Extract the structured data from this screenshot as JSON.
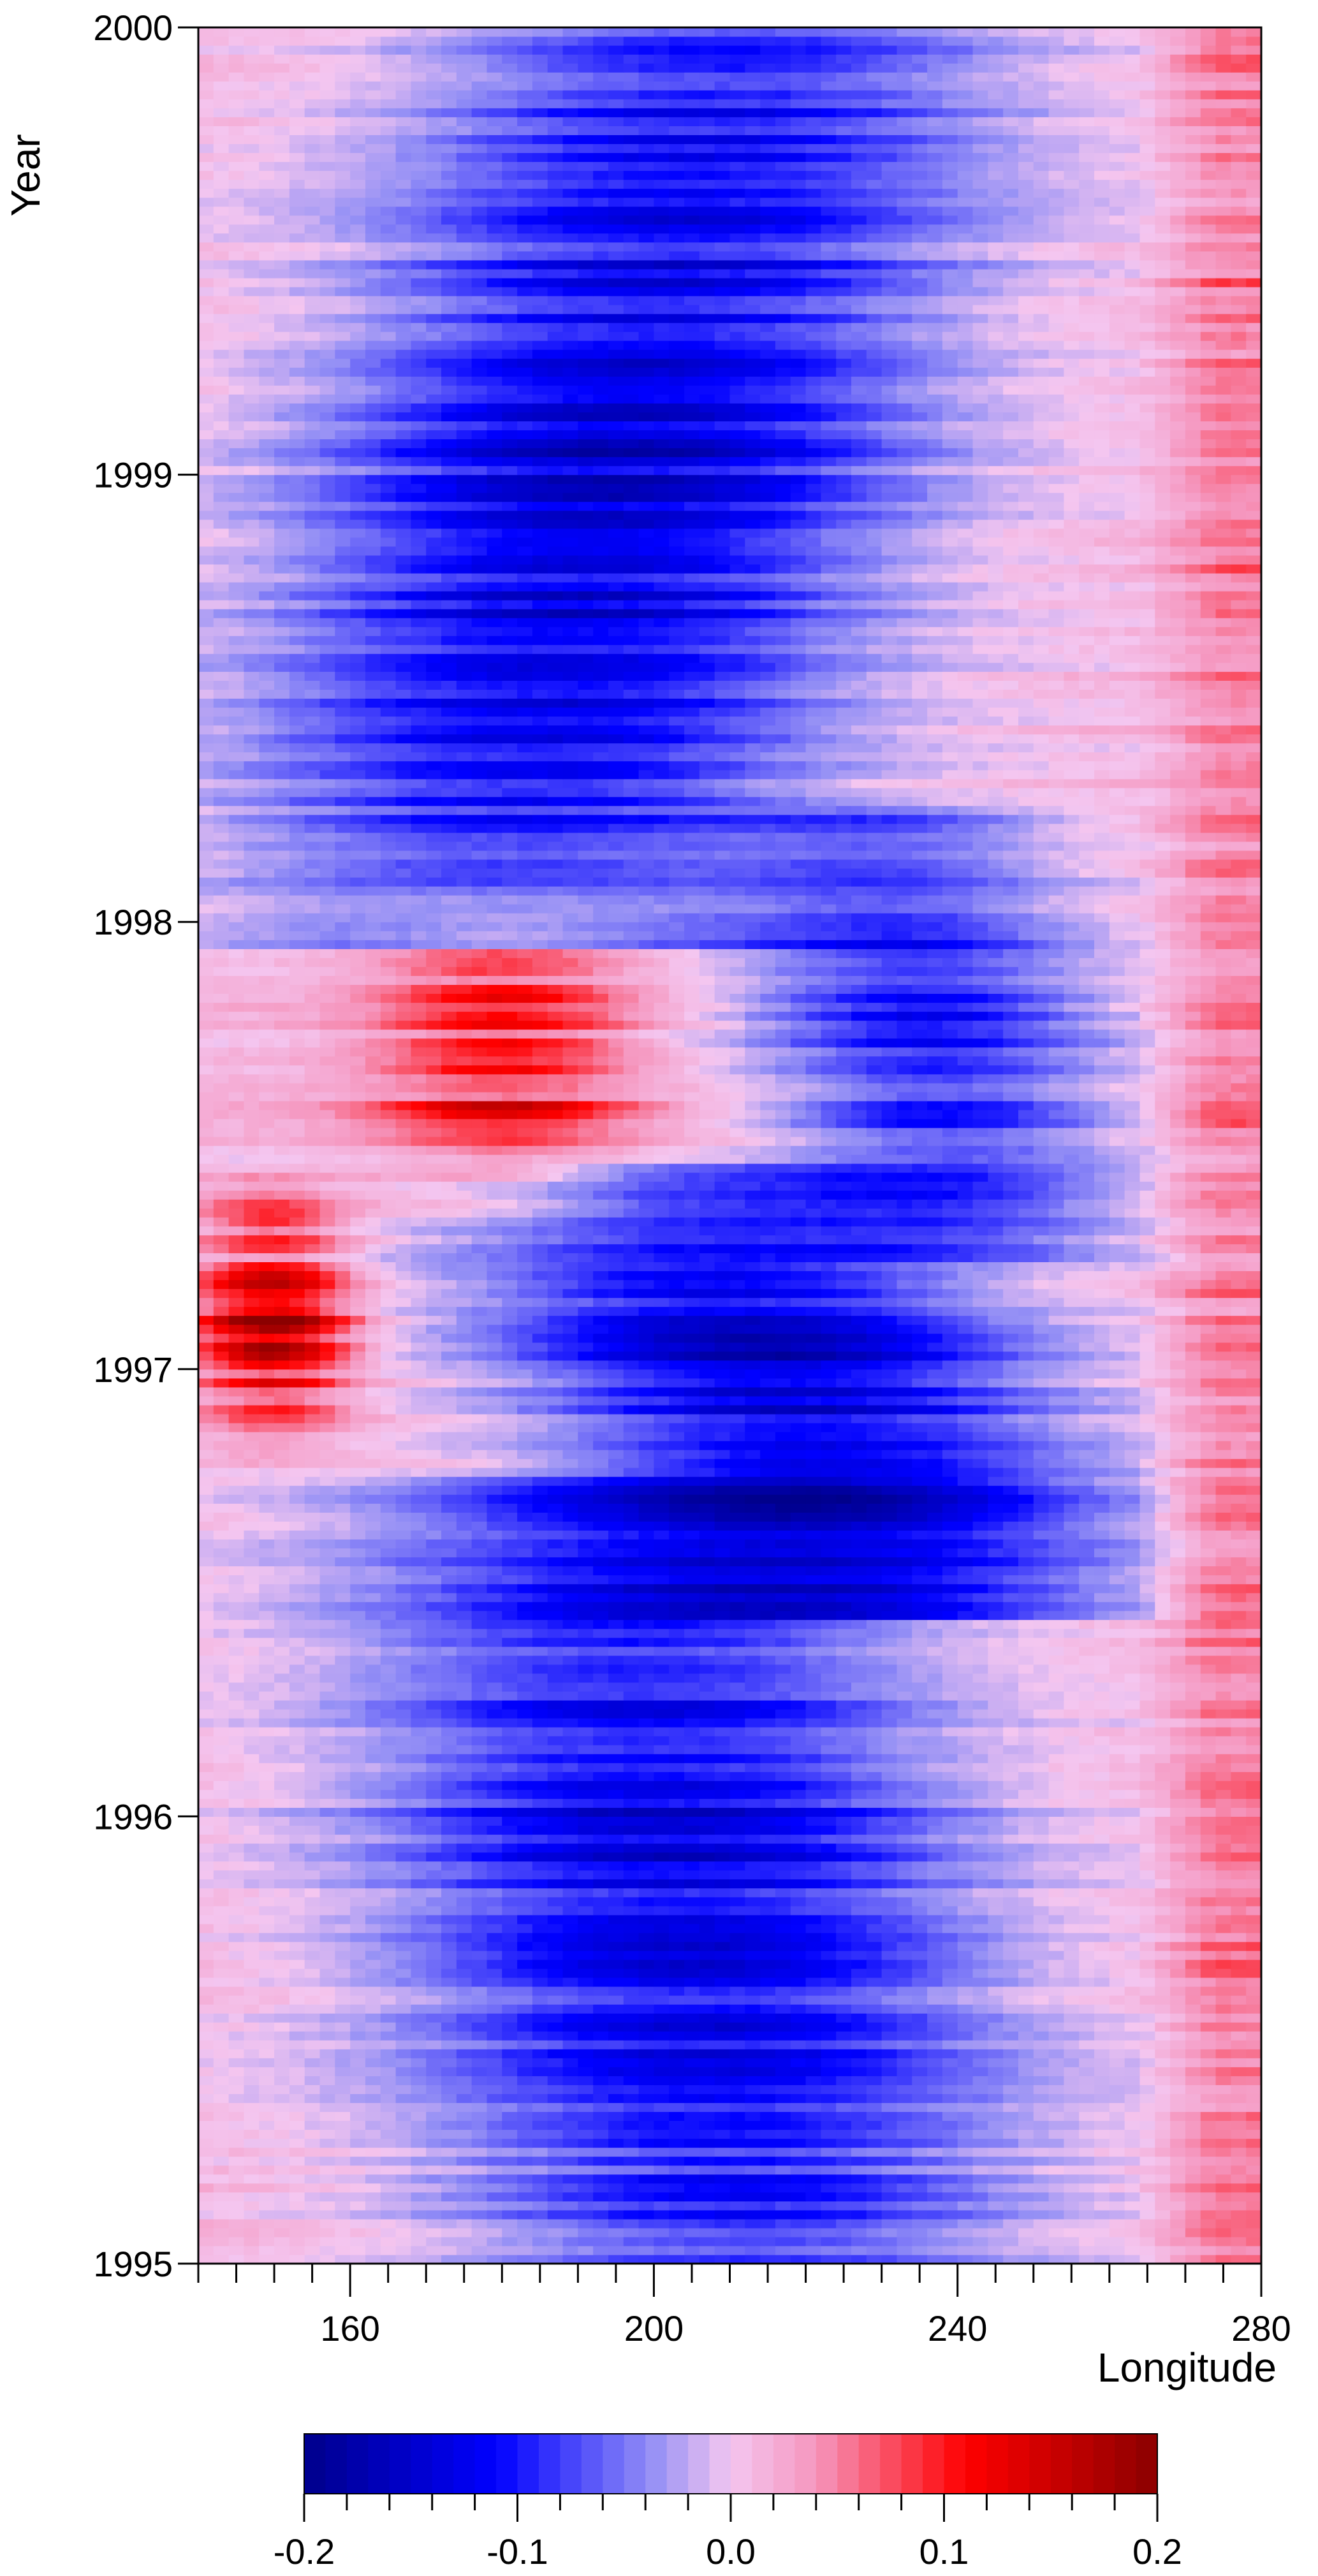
{
  "chart_data": {
    "type": "heatmap",
    "title": "",
    "xlabel": "Longitude",
    "ylabel": "Year",
    "xlim": [
      140,
      280
    ],
    "ylim": [
      1995,
      2000
    ],
    "x_ticks": [
      160,
      200,
      240,
      280
    ],
    "x_tick_labels": [
      "160",
      "200",
      "240",
      "280"
    ],
    "x_minor_step": 5,
    "y_ticks": [
      1995,
      1996,
      1997,
      1998,
      1999,
      2000
    ],
    "y_tick_labels": [
      "1995",
      "1996",
      "1997",
      "1998",
      "1999",
      "2000"
    ],
    "grid": false,
    "colorbar": {
      "range": [
        -0.2,
        0.2
      ],
      "levels": 40,
      "ticks": [
        -0.2,
        -0.1,
        0.0,
        0.1,
        0.2
      ],
      "tick_labels": [
        "-0.2",
        "-0.1",
        "0.0",
        "0.1",
        "0.2"
      ],
      "placement": "bottom",
      "colors": {
        "min": "#00008b",
        "low": "#0000ff",
        "mid": "#f4c6f0",
        "high": "#ff0000",
        "max": "#8b0000"
      }
    },
    "grid_resolution": {
      "x_step_deg": 2,
      "time_step_years": 0.02
    },
    "features": [
      {
        "kind": "negative_band",
        "x_min": 148,
        "x_max": 262,
        "t_start": 1995.0,
        "t_end": 1996.6,
        "center_start": 212,
        "center_end": 195,
        "min_value": -0.14
      },
      {
        "kind": "negative_band",
        "x_min": 158,
        "x_max": 258,
        "t_start": 1996.6,
        "t_end": 1997.3,
        "center_start": 230,
        "center_end": 205,
        "min_value": -0.15
      },
      {
        "kind": "positive_patch",
        "x_min": 140,
        "x_max": 160,
        "t_start": 1996.9,
        "t_end": 1997.35,
        "max_value": 0.19
      },
      {
        "kind": "positive_patch",
        "x_min": 160,
        "x_max": 200,
        "t_start": 1997.4,
        "t_end": 1998.0,
        "max_value": 0.13
      },
      {
        "kind": "negative_band",
        "x_min": 195,
        "x_max": 262,
        "t_start": 1997.4,
        "t_end": 1998.1,
        "center_start": 240,
        "center_end": 232,
        "min_value": -0.11
      },
      {
        "kind": "negative_band",
        "x_min": 145,
        "x_max": 258,
        "t_start": 1998.1,
        "t_end": 2000.0,
        "center_start": 180,
        "center_end": 210,
        "min_value": -0.15
      },
      {
        "kind": "positive_edge",
        "x_min": 268,
        "x_max": 280,
        "t_start": 1995.0,
        "t_end": 2000.0,
        "max_value": 0.06
      }
    ]
  }
}
